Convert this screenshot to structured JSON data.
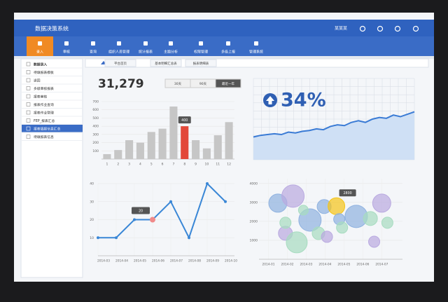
{
  "header": {
    "title": "数据决策系统",
    "user": "某某某"
  },
  "nav": {
    "items": [
      "录入",
      "审核",
      "查询",
      "组织人员管理",
      "统计报表",
      "主题分析",
      "权限管理",
      "多级上报",
      "管理系统"
    ],
    "active": 0
  },
  "sidebar": {
    "items": [
      "数据录入",
      "待填报表模板",
      "退回",
      "多级审核报表",
      "报表审核",
      "报表作业查询",
      "报表作业管理",
      "FEP_报表汇总",
      "报表填报信息汇总",
      "待填报表信息"
    ],
    "active": 8
  },
  "tabs": [
    "平台首页",
    "基本明细汇总表",
    "报表明细表"
  ],
  "chart_data": [
    {
      "type": "bar",
      "kpi": "31,279",
      "ranges": [
        "30天",
        "90天",
        "最近一年"
      ],
      "selected_range": 2,
      "categories": [
        "1",
        "2",
        "3",
        "4",
        "5",
        "6",
        "7",
        "8",
        "9",
        "10",
        "11",
        "12"
      ],
      "values": [
        60,
        110,
        230,
        200,
        330,
        370,
        640,
        400,
        230,
        130,
        290,
        450
      ],
      "color": "#c6c6c6",
      "highlight": 7,
      "highlight_color": "#e2483a",
      "ylim": [
        0,
        700
      ],
      "yticks": [
        100,
        200,
        300,
        400,
        500,
        600,
        700
      ],
      "grid": true
    },
    {
      "type": "area",
      "kpi": "34%",
      "values": [
        28,
        30,
        31,
        32,
        31,
        34,
        33,
        35,
        36,
        38,
        37,
        41,
        43,
        42,
        46,
        48,
        46,
        50,
        52,
        51,
        55,
        53,
        56,
        59
      ],
      "color": "#3a7bd5",
      "fill": "#cfe0f5",
      "ylim": [
        0,
        100
      ],
      "grid": true
    },
    {
      "type": "line",
      "categories": [
        "2014-03",
        "2014-04",
        "2014-05",
        "2014-06",
        "2014-07",
        "2014-08",
        "2014-09",
        "2014-10"
      ],
      "values": [
        10,
        10,
        20,
        20,
        30,
        10,
        40,
        30
      ],
      "color": "#3a87d6",
      "highlight": 3,
      "highlight_color": "#f08a8a",
      "ylim": [
        0,
        40
      ],
      "yticks": [
        10,
        20,
        30,
        40
      ],
      "grid": true
    },
    {
      "type": "bubble",
      "x": [
        1.5,
        2.3,
        1.9,
        1.9,
        2.5,
        3.2,
        2.85,
        3.65,
        4.1,
        3.95,
        4.6,
        4.75,
        4.9,
        5.65,
        6.4,
        7.0,
        7.3,
        6.6
      ],
      "values": [
        2960,
        3330,
        1370,
        1925,
        890,
        2070,
        2590,
        1370,
        1185,
        2780,
        2800,
        2110,
        1670,
        2260,
        2150,
        2960,
        1925,
        925
      ],
      "sizes": [
        13,
        16,
        10,
        8,
        15,
        16,
        7,
        9,
        8,
        10,
        12,
        8,
        8,
        16,
        10,
        13,
        8,
        8
      ],
      "colors": [
        "#8fb2e0",
        "#b9a9e0",
        "#b9a9e0",
        "#a7dcc0",
        "#a7dcc0",
        "#8fb2e0",
        "#a7dcc0",
        "#a7dcc0",
        "#b9a9e0",
        "#8fb2e0",
        "#f5c518",
        "#8fb2e0",
        "#a7dcc0",
        "#8fb2e0",
        "#a7dcc0",
        "#b9a9e0",
        "#a7dcc0",
        "#b9a9e0"
      ],
      "highlight": 10,
      "xlim": [
        0.5,
        8.1
      ],
      "xticks": [
        {
          "value": 1,
          "label": "2014-01"
        },
        {
          "value": 2,
          "label": "2014-02"
        },
        {
          "value": 3,
          "label": "2014-03"
        },
        {
          "value": 4,
          "label": "2014-04"
        },
        {
          "value": 5,
          "label": "2014-05"
        },
        {
          "value": 6,
          "label": "2014-06"
        },
        {
          "value": 7,
          "label": "2014-07"
        }
      ],
      "ylim": [
        0,
        4250
      ],
      "yticks": [
        1000,
        2000,
        3000,
        4000
      ],
      "grid": true
    }
  ]
}
